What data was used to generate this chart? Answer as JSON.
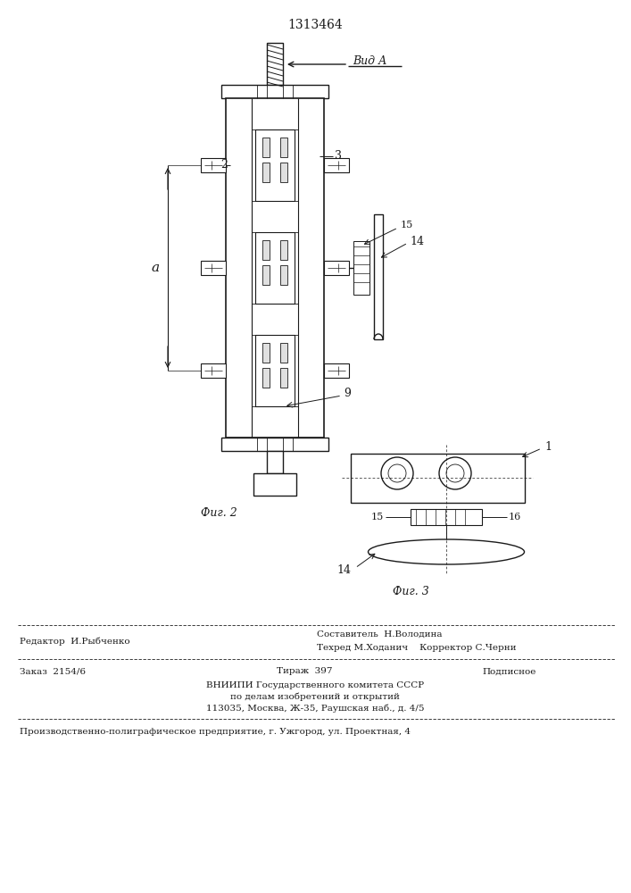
{
  "patent_number": "1313464",
  "bg_color": "#ffffff",
  "line_color": "#1a1a1a",
  "fig2_label": "Фиг. 2",
  "fig3_label": "Фиг. 3",
  "view_label": "Вид А",
  "footer": {
    "editor": "Редактор  И.Рыбченко",
    "compiler": "Составитель  Н.Володина",
    "techred": "Техред М.Ходанич",
    "corrector": "Корректор С.Черни",
    "order": "Заказ  2154/6",
    "tirazh": "Тираж  397",
    "podpisnoe": "Подписное",
    "vniigi": "ВНИИПИ Государственного комитета СССР",
    "po_delam": "по делам изобретений и открытий",
    "address": "113035, Москва, Ж-35, Раушская наб., д. 4/5",
    "production": "Производственно-полиграфическое предприятие, г. Ужгород, ул. Проектная, 4"
  }
}
